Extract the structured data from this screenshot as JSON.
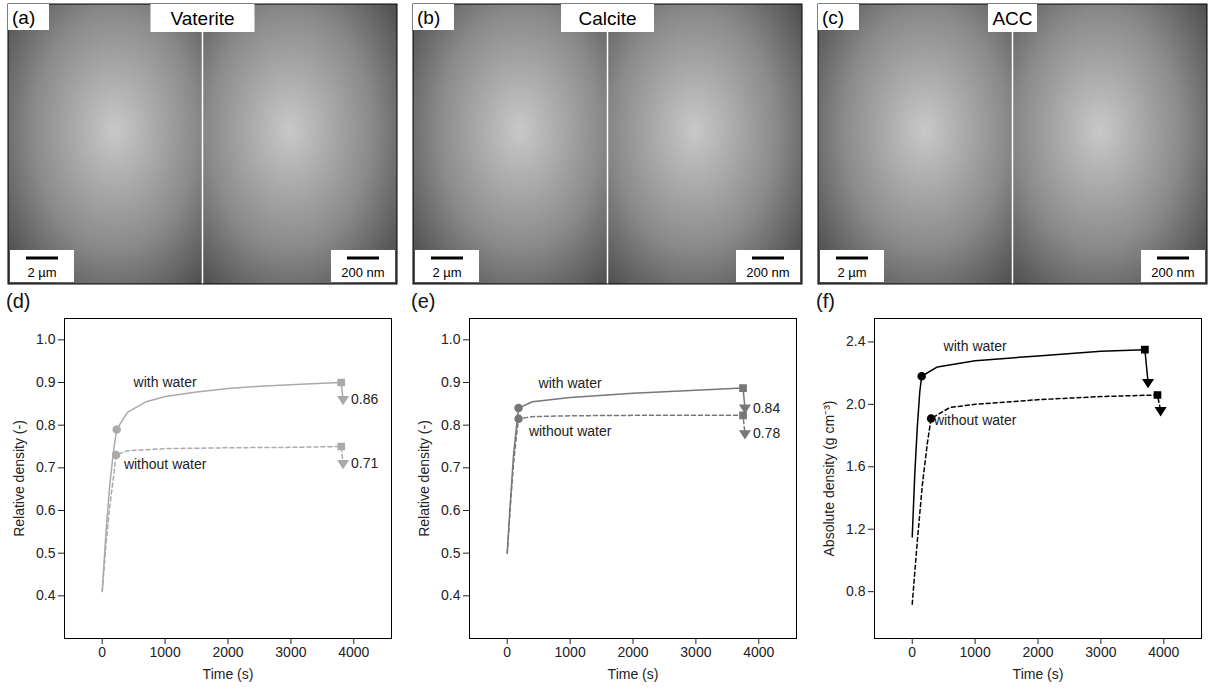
{
  "images": [
    {
      "panel_label": "(a)",
      "title": "Vaterite",
      "scale_bars": [
        "2 µm",
        "200 nm"
      ]
    },
    {
      "panel_label": "(b)",
      "title": "Calcite",
      "scale_bars": [
        "2 µm",
        "200 nm"
      ]
    },
    {
      "panel_label": "(c)",
      "title": "ACC",
      "scale_bars": [
        "2 µm",
        "200 nm"
      ]
    }
  ],
  "chart_data": [
    {
      "panel_label": "(d)",
      "type": "line",
      "x_label": "Time (s)",
      "y_label": "Relative density (-)",
      "xlim": [
        -600,
        4600
      ],
      "xticks": [
        0,
        1000,
        2000,
        3000,
        4000
      ],
      "ylim": [
        0.3,
        1.05
      ],
      "yticks": [
        0.4,
        0.5,
        0.6,
        0.7,
        0.8,
        0.9,
        {
          "value": 1,
          "label": "1.0"
        }
      ],
      "grid": false,
      "series": [
        {
          "name": "with water",
          "color": "#aaaaaa",
          "line_style": "solid",
          "x": [
            0,
            60,
            120,
            180,
            230,
            400,
            700,
            1000,
            1500,
            2000,
            2500,
            3000,
            3500,
            3800,
            3830
          ],
          "values": [
            0.41,
            0.55,
            0.66,
            0.74,
            0.79,
            0.83,
            0.855,
            0.867,
            0.878,
            0.886,
            0.891,
            0.895,
            0.898,
            0.9,
            0.86
          ],
          "marker": [
            null,
            null,
            null,
            null,
            "circle",
            null,
            null,
            null,
            null,
            null,
            null,
            null,
            null,
            "square",
            "triangle-down"
          ]
        },
        {
          "name": "without water",
          "color": "#aaaaaa",
          "line_style": "dashed",
          "x": [
            0,
            60,
            120,
            180,
            220,
            400,
            1000,
            2000,
            3000,
            3800,
            3830
          ],
          "values": [
            0.41,
            0.52,
            0.61,
            0.68,
            0.73,
            0.74,
            0.745,
            0.747,
            0.748,
            0.75,
            0.71
          ],
          "marker": [
            null,
            null,
            null,
            null,
            "circle",
            null,
            null,
            null,
            null,
            "square",
            "triangle-down"
          ]
        }
      ],
      "annotations": [
        {
          "text": "0.86",
          "x": 3830,
          "y": 0.86
        },
        {
          "text": "0.71",
          "x": 3830,
          "y": 0.71
        }
      ]
    },
    {
      "panel_label": "(e)",
      "type": "line",
      "x_label": "Time (s)",
      "y_label": "Relative density (-)",
      "xlim": [
        -600,
        4600
      ],
      "xticks": [
        0,
        1000,
        2000,
        3000,
        4000
      ],
      "ylim": [
        0.3,
        1.05
      ],
      "yticks": [
        0.4,
        0.5,
        0.6,
        0.7,
        0.8,
        0.9,
        {
          "value": 1,
          "label": "1.0"
        }
      ],
      "grid": false,
      "series": [
        {
          "name": "with water",
          "color": "#777777",
          "line_style": "solid",
          "x": [
            0,
            50,
            100,
            150,
            180,
            400,
            1000,
            2000,
            3000,
            3750,
            3780
          ],
          "values": [
            0.5,
            0.62,
            0.73,
            0.8,
            0.84,
            0.855,
            0.865,
            0.875,
            0.882,
            0.887,
            0.84
          ],
          "marker": [
            null,
            null,
            null,
            null,
            "circle",
            null,
            null,
            null,
            null,
            "square",
            "triangle-down"
          ]
        },
        {
          "name": "without water",
          "color": "#777777",
          "line_style": "dashed",
          "x": [
            0,
            50,
            100,
            150,
            180,
            400,
            1000,
            2000,
            3000,
            3750,
            3780
          ],
          "values": [
            0.5,
            0.61,
            0.71,
            0.78,
            0.815,
            0.82,
            0.822,
            0.823,
            0.823,
            0.823,
            0.78
          ],
          "marker": [
            null,
            null,
            null,
            null,
            "circle",
            null,
            null,
            null,
            null,
            "square",
            "triangle-down"
          ]
        }
      ],
      "annotations": [
        {
          "text": "0.84",
          "x": 3780,
          "y": 0.84
        },
        {
          "text": "0.78",
          "x": 3780,
          "y": 0.78
        }
      ]
    },
    {
      "panel_label": "(f)",
      "type": "line",
      "x_label": "Time (s)",
      "y_label": "Absolute density (g cm⁻³)",
      "xlim": [
        -600,
        4600
      ],
      "xticks": [
        0,
        1000,
        2000,
        3000,
        4000
      ],
      "ylim": [
        0.5,
        2.55
      ],
      "yticks": [
        0.8,
        1.2,
        1.6,
        {
          "value": 2,
          "label": "2.0"
        },
        2.4
      ],
      "grid": false,
      "series": [
        {
          "name": "with water",
          "color": "#000000",
          "line_style": "solid",
          "x": [
            0,
            40,
            80,
            120,
            150,
            400,
            1000,
            2000,
            3000,
            3700,
            3750
          ],
          "values": [
            1.15,
            1.55,
            1.85,
            2.08,
            2.18,
            2.24,
            2.28,
            2.31,
            2.34,
            2.35,
            2.14
          ],
          "marker": [
            null,
            null,
            null,
            null,
            "circle",
            null,
            null,
            null,
            null,
            "square",
            "triangle-down"
          ]
        },
        {
          "name": "without water",
          "color": "#000000",
          "line_style": "dashed",
          "x": [
            0,
            80,
            160,
            240,
            300,
            600,
            1000,
            2000,
            3000,
            3900,
            3950
          ],
          "values": [
            0.72,
            1.12,
            1.48,
            1.75,
            1.91,
            1.98,
            2.0,
            2.03,
            2.05,
            2.06,
            1.96
          ],
          "marker": [
            null,
            null,
            null,
            null,
            "circle",
            null,
            null,
            null,
            null,
            "square",
            "triangle-down"
          ]
        }
      ],
      "annotations": []
    }
  ]
}
